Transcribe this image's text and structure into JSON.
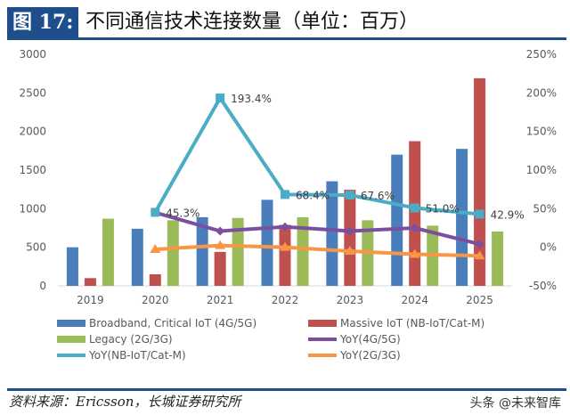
{
  "header": {
    "figure_label": "图 17:",
    "title": "不同通信技术连接数量（单位：百万）"
  },
  "chart_data": {
    "type": "bar+line",
    "categories": [
      "2019",
      "2020",
      "2021",
      "2022",
      "2023",
      "2024",
      "2025"
    ],
    "left_axis": {
      "ylim": [
        0,
        3000
      ],
      "ticks": [
        "0",
        "500",
        "1000",
        "1500",
        "2000",
        "2500",
        "3000"
      ]
    },
    "right_axis": {
      "ylim": [
        -50,
        250
      ],
      "ticks": [
        "-50%",
        "0%",
        "50%",
        "100%",
        "150%",
        "200%",
        "250%"
      ]
    },
    "bar_series": [
      {
        "name": "Broadband, Critical IoT (4G/5G)",
        "color": "#4a7ebb",
        "values": [
          500,
          740,
          890,
          1115,
          1355,
          1700,
          1775
        ]
      },
      {
        "name": "Massive IoT (NB-IoT/Cat-M)",
        "color": "#c0504d",
        "values": [
          100,
          150,
          440,
          790,
          1245,
          1875,
          2690
        ]
      },
      {
        "name": "Legacy (2G/3G)",
        "color": "#9bbb59",
        "values": [
          870,
          850,
          880,
          890,
          850,
          780,
          705
        ]
      }
    ],
    "line_series": [
      {
        "name": "YoY(4G/5G)",
        "color": "#7b4fa0",
        "marker": "diamond",
        "values": [
          null,
          45,
          21,
          26.5,
          21,
          25,
          4
        ]
      },
      {
        "name": "YoY(NB-IoT/Cat-M)",
        "color": "#4bacc6",
        "marker": "square",
        "values": [
          null,
          45.3,
          193.4,
          68.4,
          67.6,
          51.0,
          42.9
        ],
        "labels": [
          null,
          "45.3%",
          "193.4%",
          "68.4%",
          "67.6%",
          "51.0%",
          "42.9%"
        ]
      },
      {
        "name": "YoY(2G/3G)",
        "color": "#f79646",
        "marker": "triangle",
        "values": [
          null,
          -2.7,
          2.3,
          0,
          -5,
          -9,
          -11
        ]
      }
    ],
    "grid": false,
    "legend_placement": "bottom"
  },
  "footer": {
    "source": "资料来源：Ericsson，长城证券研究所",
    "watermark": "头条 @未来智库"
  }
}
